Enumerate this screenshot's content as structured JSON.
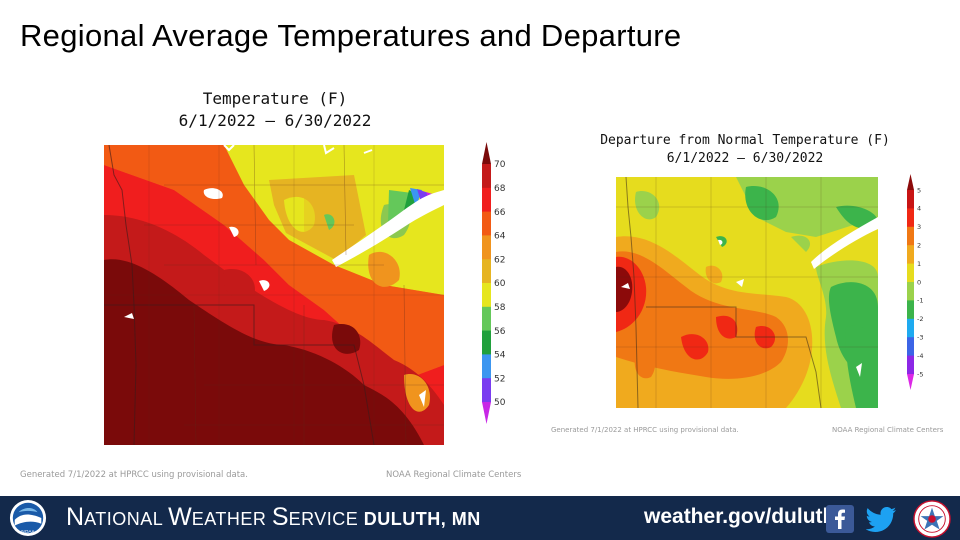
{
  "slide": {
    "title": "Regional Average Temperatures and Departure"
  },
  "temperature_map": {
    "title_line1": "Temperature (F)",
    "title_line2": "6/1/2022 – 6/30/2022",
    "colorbar_labels": [
      "70",
      "68",
      "66",
      "64",
      "62",
      "60",
      "58",
      "56",
      "54",
      "52",
      "50"
    ],
    "colorbar_colors": [
      "#7a0a0a",
      "#c41a1a",
      "#f01e1e",
      "#f25a14",
      "#f0941e",
      "#e6b422",
      "#e6e61e",
      "#64c85a",
      "#20a03c",
      "#3c96f0",
      "#7a3cf0",
      "#c828e6"
    ],
    "generated_note": "Generated 7/1/2022 at HPRCC using provisional data.",
    "source_note": "NOAA Regional Climate Centers"
  },
  "departure_map": {
    "title_line1": "Departure from Normal Temperature (F)",
    "title_line2": "6/1/2022 – 6/30/2022",
    "colorbar_labels": [
      "5",
      "4",
      "3",
      "2",
      "1",
      "0",
      "-1",
      "-2",
      "-3",
      "-4",
      "-5"
    ],
    "colorbar_colors": [
      "#8c0a0a",
      "#c81414",
      "#f02814",
      "#f07814",
      "#f0aa1e",
      "#e6dc1e",
      "#9bd24b",
      "#3cb44b",
      "#1eaaf0",
      "#3c64e6",
      "#8c28e6",
      "#dc28e6"
    ],
    "generated_note": "Generated 7/1/2022 at HPRCC using provisional data.",
    "source_note": "NOAA Regional Climate Centers"
  },
  "banner": {
    "logo_left": "NOAA",
    "nws_prefix_n": "N",
    "nws_prefix_rest": "ATIONAL ",
    "nws_w": "W",
    "nws_w_rest": "EATHER ",
    "nws_s": "S",
    "nws_s_rest": "ERVICE ",
    "city": "Duluth, MN",
    "url": "weather.gov/duluth",
    "social_icons": [
      "facebook-icon",
      "twitter-icon"
    ],
    "background_color": "#13294b"
  }
}
